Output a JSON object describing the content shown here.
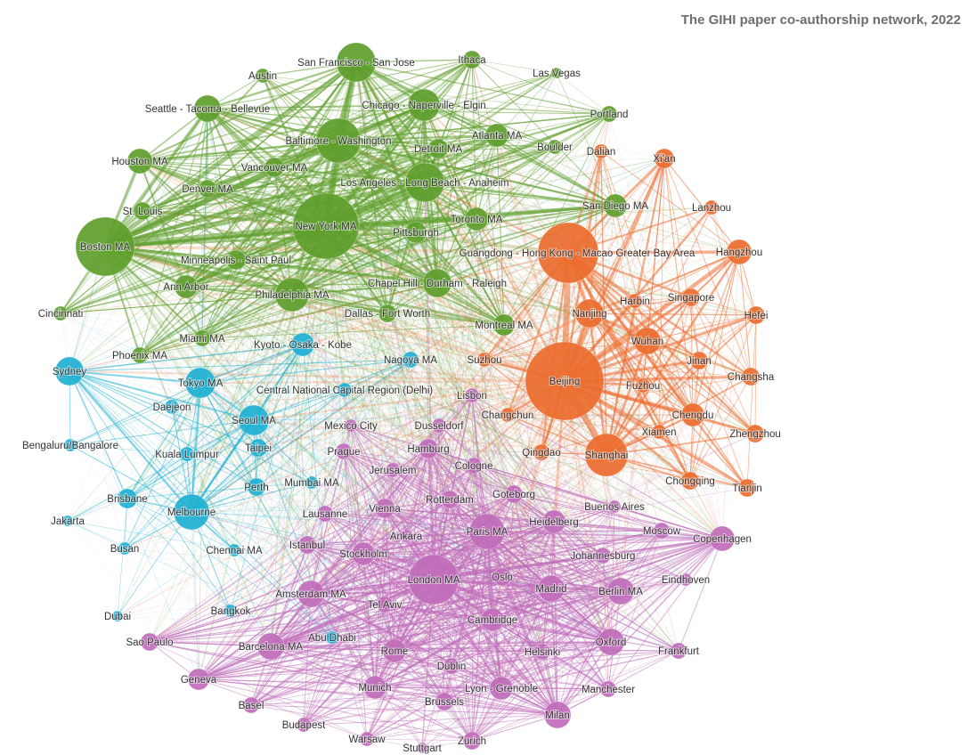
{
  "title": "The GIHI paper co-authorship network, 2022",
  "colors": {
    "north_america": "#5e9e2c",
    "china": "#ec6d2f",
    "asia_pacific": "#1fb0d2",
    "europe_other": "#c06cba"
  },
  "nodes": [
    {
      "label": "San Francisco - San Jose",
      "group": "north_america",
      "size": 22
    },
    {
      "label": "Ithaca",
      "group": "north_america",
      "size": 10
    },
    {
      "label": "Las Vegas",
      "group": "north_america",
      "size": 6
    },
    {
      "label": "Austin",
      "group": "north_america",
      "size": 8
    },
    {
      "label": "Seattle - Tacoma - Bellevue",
      "group": "north_america",
      "size": 15
    },
    {
      "label": "Chicago - Naperville - Elgin",
      "group": "north_america",
      "size": 18
    },
    {
      "label": "Portland",
      "group": "north_america",
      "size": 9
    },
    {
      "label": "Baltimore - Washington",
      "group": "north_america",
      "size": 25
    },
    {
      "label": "Detroit MA",
      "group": "north_america",
      "size": 11
    },
    {
      "label": "Atlanta MA",
      "group": "north_america",
      "size": 13
    },
    {
      "label": "Boulder",
      "group": "north_america",
      "size": 8
    },
    {
      "label": "Houston MA",
      "group": "north_america",
      "size": 14
    },
    {
      "label": "Vancouver MA",
      "group": "north_america",
      "size": 11
    },
    {
      "label": "Denver MA",
      "group": "north_america",
      "size": 10
    },
    {
      "label": "Los Angeles - Long Beach - Anaheim",
      "group": "north_america",
      "size": 22
    },
    {
      "label": "San Diego MA",
      "group": "north_america",
      "size": 13
    },
    {
      "label": "St. Louis",
      "group": "north_america",
      "size": 10
    },
    {
      "label": "Boston MA",
      "group": "north_america",
      "size": 33
    },
    {
      "label": "New York MA",
      "group": "north_america",
      "size": 37
    },
    {
      "label": "Toronto MA",
      "group": "north_america",
      "size": 13
    },
    {
      "label": "Pittsburgh",
      "group": "north_america",
      "size": 12
    },
    {
      "label": "Minneapolis - Saint Paul",
      "group": "north_america",
      "size": 11
    },
    {
      "label": "Ann Arbor",
      "group": "north_america",
      "size": 13
    },
    {
      "label": "Philadelphia MA",
      "group": "north_america",
      "size": 19
    },
    {
      "label": "Chapel Hill - Durham - Raleigh",
      "group": "north_america",
      "size": 16
    },
    {
      "label": "Cincinnati",
      "group": "north_america",
      "size": 8
    },
    {
      "label": "Dallas - Fort Worth",
      "group": "north_america",
      "size": 10
    },
    {
      "label": "Montreal MA",
      "group": "north_america",
      "size": 12
    },
    {
      "label": "Miami MA",
      "group": "north_america",
      "size": 9
    },
    {
      "label": "Phoenix MA",
      "group": "north_america",
      "size": 9
    },
    {
      "label": "Dalian",
      "group": "china",
      "size": 8
    },
    {
      "label": "Xi'an",
      "group": "china",
      "size": 11
    },
    {
      "label": "Lanzhou",
      "group": "china",
      "size": 8
    },
    {
      "label": "Guangdong - Hong Kong - Macao Greater Bay Area",
      "group": "china",
      "size": 34
    },
    {
      "label": "Hangzhou",
      "group": "china",
      "size": 14
    },
    {
      "label": "Harbin",
      "group": "china",
      "size": 8
    },
    {
      "label": "Singapore",
      "group": "china",
      "size": 10
    },
    {
      "label": "Nanjing",
      "group": "china",
      "size": 16
    },
    {
      "label": "Hefei",
      "group": "china",
      "size": 10
    },
    {
      "label": "Wuhan",
      "group": "china",
      "size": 15
    },
    {
      "label": "Suzhou",
      "group": "china",
      "size": 8
    },
    {
      "label": "Jinan",
      "group": "china",
      "size": 10
    },
    {
      "label": "Beijing",
      "group": "china",
      "size": 44
    },
    {
      "label": "Changsha",
      "group": "china",
      "size": 10
    },
    {
      "label": "Fuzhou",
      "group": "china",
      "size": 8
    },
    {
      "label": "Chengdu",
      "group": "china",
      "size": 13
    },
    {
      "label": "Changchun",
      "group": "china",
      "size": 8
    },
    {
      "label": "Xiamen",
      "group": "china",
      "size": 8
    },
    {
      "label": "Zhengzhou",
      "group": "china",
      "size": 10
    },
    {
      "label": "Qingdao",
      "group": "china",
      "size": 9
    },
    {
      "label": "Shanghai",
      "group": "china",
      "size": 24
    },
    {
      "label": "Chongqing",
      "group": "china",
      "size": 10
    },
    {
      "label": "Tianjin",
      "group": "china",
      "size": 10
    },
    {
      "label": "Kyoto - Osaka - Kobe",
      "group": "asia_pacific",
      "size": 13
    },
    {
      "label": "Nagoya MA",
      "group": "asia_pacific",
      "size": 9
    },
    {
      "label": "Sydney",
      "group": "asia_pacific",
      "size": 16
    },
    {
      "label": "Tokyo MA",
      "group": "asia_pacific",
      "size": 17
    },
    {
      "label": "Central National Capital Region (Delhi)",
      "group": "asia_pacific",
      "size": 8
    },
    {
      "label": "Daejeon",
      "group": "asia_pacific",
      "size": 8
    },
    {
      "label": "Seoul MA",
      "group": "asia_pacific",
      "size": 17
    },
    {
      "label": "Bengaluru/Bangalore",
      "group": "asia_pacific",
      "size": 7
    },
    {
      "label": "Kuala Lumpur",
      "group": "asia_pacific",
      "size": 8
    },
    {
      "label": "Taipei",
      "group": "asia_pacific",
      "size": 10
    },
    {
      "label": "Perth",
      "group": "asia_pacific",
      "size": 10
    },
    {
      "label": "Mumbai MA",
      "group": "asia_pacific",
      "size": 7
    },
    {
      "label": "Brisbane",
      "group": "asia_pacific",
      "size": 11
    },
    {
      "label": "Melbourne",
      "group": "asia_pacific",
      "size": 20
    },
    {
      "label": "Jakarta",
      "group": "asia_pacific",
      "size": 6
    },
    {
      "label": "Busan",
      "group": "asia_pacific",
      "size": 7
    },
    {
      "label": "Chennai MA",
      "group": "asia_pacific",
      "size": 7
    },
    {
      "label": "Dubai",
      "group": "asia_pacific",
      "size": 6
    },
    {
      "label": "Bangkok",
      "group": "asia_pacific",
      "size": 7
    },
    {
      "label": "Abu Dhabi",
      "group": "asia_pacific",
      "size": 7
    },
    {
      "label": "Lisbon",
      "group": "europe_other",
      "size": 8
    },
    {
      "label": "Mexico City",
      "group": "europe_other",
      "size": 7
    },
    {
      "label": "Dusseldorf",
      "group": "europe_other",
      "size": 8
    },
    {
      "label": "Prague",
      "group": "europe_other",
      "size": 9
    },
    {
      "label": "Hamburg",
      "group": "europe_other",
      "size": 11
    },
    {
      "label": "Jerusalem",
      "group": "europe_other",
      "size": 8
    },
    {
      "label": "Cologne",
      "group": "europe_other",
      "size": 9
    },
    {
      "label": "Rotterdam",
      "group": "europe_other",
      "size": 10
    },
    {
      "label": "Goteborg",
      "group": "europe_other",
      "size": 10
    },
    {
      "label": "Buenos Aires",
      "group": "europe_other",
      "size": 7
    },
    {
      "label": "Lausanne",
      "group": "europe_other",
      "size": 9
    },
    {
      "label": "Vienna",
      "group": "europe_other",
      "size": 11
    },
    {
      "label": "Heidelberg",
      "group": "europe_other",
      "size": 13
    },
    {
      "label": "Moscow",
      "group": "europe_other",
      "size": 9
    },
    {
      "label": "Paris MA",
      "group": "europe_other",
      "size": 20
    },
    {
      "label": "Ankara",
      "group": "europe_other",
      "size": 7
    },
    {
      "label": "Istanbul",
      "group": "europe_other",
      "size": 10
    },
    {
      "label": "Copenhagen",
      "group": "europe_other",
      "size": 14
    },
    {
      "label": "Stockholm",
      "group": "europe_other",
      "size": 13
    },
    {
      "label": "Johannesburg",
      "group": "europe_other",
      "size": 9
    },
    {
      "label": "London MA",
      "group": "europe_other",
      "size": 28
    },
    {
      "label": "Oslo",
      "group": "europe_other",
      "size": 10
    },
    {
      "label": "Eindhoven",
      "group": "europe_other",
      "size": 7
    },
    {
      "label": "Madrid",
      "group": "europe_other",
      "size": 15
    },
    {
      "label": "Berlin MA",
      "group": "europe_other",
      "size": 15
    },
    {
      "label": "Amsterdam MA",
      "group": "europe_other",
      "size": 15
    },
    {
      "label": "Tel Aviv",
      "group": "europe_other",
      "size": 9
    },
    {
      "label": "Cambridge",
      "group": "europe_other",
      "size": 13
    },
    {
      "label": "Sao Paulo",
      "group": "europe_other",
      "size": 10
    },
    {
      "label": "Barcelona MA",
      "group": "europe_other",
      "size": 15
    },
    {
      "label": "Rome",
      "group": "europe_other",
      "size": 13
    },
    {
      "label": "Oxford",
      "group": "europe_other",
      "size": 15
    },
    {
      "label": "Frankfurt",
      "group": "europe_other",
      "size": 9
    },
    {
      "label": "Helsinki",
      "group": "europe_other",
      "size": 9
    },
    {
      "label": "Dublin",
      "group": "europe_other",
      "size": 9
    },
    {
      "label": "Geneva",
      "group": "europe_other",
      "size": 12
    },
    {
      "label": "Munich",
      "group": "europe_other",
      "size": 13
    },
    {
      "label": "Lyon - Grenoble",
      "group": "europe_other",
      "size": 13
    },
    {
      "label": "Manchester",
      "group": "europe_other",
      "size": 9
    },
    {
      "label": "Basel",
      "group": "europe_other",
      "size": 9
    },
    {
      "label": "Brussels",
      "group": "europe_other",
      "size": 10
    },
    {
      "label": "Milan",
      "group": "europe_other",
      "size": 15
    },
    {
      "label": "Budapest",
      "group": "europe_other",
      "size": 8
    },
    {
      "label": "Warsaw",
      "group": "europe_other",
      "size": 8
    },
    {
      "label": "Zurich",
      "group": "europe_other",
      "size": 10
    },
    {
      "label": "Stuttgart",
      "group": "europe_other",
      "size": 6
    }
  ]
}
